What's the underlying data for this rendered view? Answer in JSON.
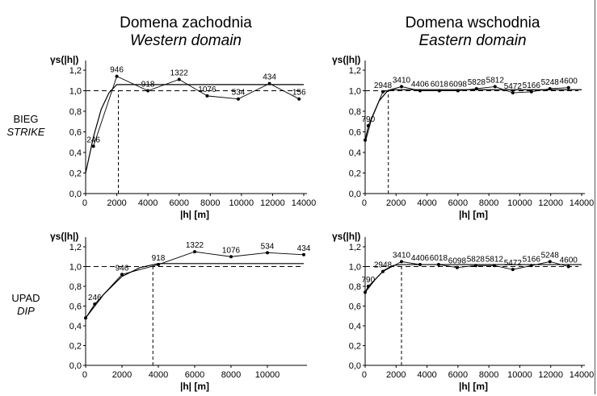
{
  "titles": {
    "western": {
      "pl": "Domena zachodnia",
      "en": "Western domain"
    },
    "eastern": {
      "pl": "Domena wschodnia",
      "en": "Eastern domain"
    }
  },
  "rows": {
    "strike": {
      "pl": "BIEG",
      "en": "STRIKE"
    },
    "dip": {
      "pl": "UPAD",
      "en": "DIP"
    }
  },
  "chart_data": [
    {
      "id": "western-strike",
      "type": "line",
      "ylabel": "γs(|h|)",
      "xlabel": "|h| [m]",
      "xlim": [
        0,
        14000
      ],
      "ylim": [
        0,
        1.2
      ],
      "xticks": [
        0,
        2000,
        4000,
        6000,
        8000,
        10000,
        12000,
        14000
      ],
      "yticks": [
        0,
        0.2,
        0.4,
        0.6,
        0.8,
        1.0,
        1.2
      ],
      "experimental": {
        "x": [
          500,
          2000,
          4000,
          6000,
          7800,
          9800,
          11800,
          13700
        ],
        "y": [
          0.46,
          1.14,
          1.0,
          1.11,
          0.95,
          0.92,
          1.07,
          0.92
        ],
        "labels": [
          "246",
          "946",
          "918",
          "1322",
          "1076",
          "534",
          "434",
          "156"
        ]
      },
      "model": {
        "x": [
          0,
          500,
          1000,
          1500,
          2000,
          14000
        ],
        "y": [
          0.2,
          0.55,
          0.82,
          0.98,
          1.06,
          1.06
        ]
      },
      "sill": 1.0,
      "range": 2100
    },
    {
      "id": "eastern-strike",
      "type": "line",
      "ylabel": "γs(|h|)",
      "xlabel": "|h| [m]",
      "xlim": [
        0,
        14000
      ],
      "ylim": [
        0,
        1.2
      ],
      "xticks": [
        0,
        2000,
        4000,
        6000,
        8000,
        10000,
        12000,
        14000
      ],
      "yticks": [
        0,
        0.2,
        0.4,
        0.6,
        0.8,
        1.0,
        1.2
      ],
      "experimental": {
        "x": [
          0,
          200,
          1150,
          2350,
          3550,
          4800,
          6000,
          7200,
          8400,
          9550,
          10750,
          11950,
          13150
        ],
        "y": [
          0.52,
          0.66,
          0.99,
          1.04,
          1.0,
          1.0,
          1.0,
          1.02,
          1.04,
          0.98,
          0.99,
          1.02,
          1.03
        ],
        "labels": [
          "",
          "790",
          "2948",
          "3410",
          "4406",
          "6018",
          "6098",
          "5828",
          "5812",
          "5472",
          "5166",
          "5248",
          "4600"
        ]
      },
      "model": {
        "x": [
          0,
          400,
          900,
          1400,
          1700,
          14000
        ],
        "y": [
          0.5,
          0.72,
          0.9,
          0.99,
          1.01,
          1.01
        ]
      },
      "sill": 1.0,
      "range": 1500
    },
    {
      "id": "western-dip",
      "type": "line",
      "ylabel": "γs(|h|)",
      "xlabel": "|h| [m]",
      "xlim": [
        0,
        12000
      ],
      "ylim": [
        0,
        1.2
      ],
      "xticks": [
        0,
        2000,
        4000,
        6000,
        8000,
        10000
      ],
      "yticks": [
        0,
        0.2,
        0.4,
        0.6,
        0.8,
        1.0,
        1.2
      ],
      "experimental": {
        "x": [
          0,
          500,
          2000,
          4000,
          6000,
          8000,
          10000,
          12000
        ],
        "y": [
          0.48,
          0.62,
          0.92,
          1.02,
          1.15,
          1.1,
          1.14,
          1.12
        ],
        "labels": [
          "",
          "246",
          "946",
          "918",
          "1322",
          "1076",
          "534",
          "434"
        ]
      },
      "model": {
        "x": [
          0,
          1000,
          2000,
          3000,
          4000,
          12000
        ],
        "y": [
          0.48,
          0.72,
          0.9,
          0.99,
          1.03,
          1.03
        ]
      },
      "sill": 1.0,
      "range": 3700
    },
    {
      "id": "eastern-dip",
      "type": "line",
      "ylabel": "γs(|h|)",
      "xlabel": "|h| [m]",
      "xlim": [
        0,
        14000
      ],
      "ylim": [
        0,
        1.2
      ],
      "xticks": [
        0,
        2000,
        4000,
        6000,
        8000,
        10000,
        12000,
        14000
      ],
      "yticks": [
        0,
        0.2,
        0.4,
        0.6,
        0.8,
        1.0,
        1.2
      ],
      "experimental": {
        "x": [
          0,
          200,
          1150,
          2350,
          3550,
          4750,
          5950,
          7150,
          8350,
          9550,
          10750,
          11950,
          13150
        ],
        "y": [
          0.74,
          0.8,
          0.95,
          1.05,
          1.02,
          1.02,
          0.99,
          1.01,
          1.01,
          0.97,
          1.01,
          1.05,
          1.0
        ],
        "labels": [
          "",
          "790",
          "2948",
          "3410",
          "4406",
          "6018",
          "6098",
          "5828",
          "5812",
          "5472",
          "5166",
          "5248",
          "4600"
        ]
      },
      "model": {
        "x": [
          0,
          600,
          1200,
          1800,
          2300,
          14000
        ],
        "y": [
          0.74,
          0.86,
          0.96,
          1.01,
          1.02,
          1.02
        ]
      },
      "sill": 1.0,
      "range": 2350
    }
  ]
}
